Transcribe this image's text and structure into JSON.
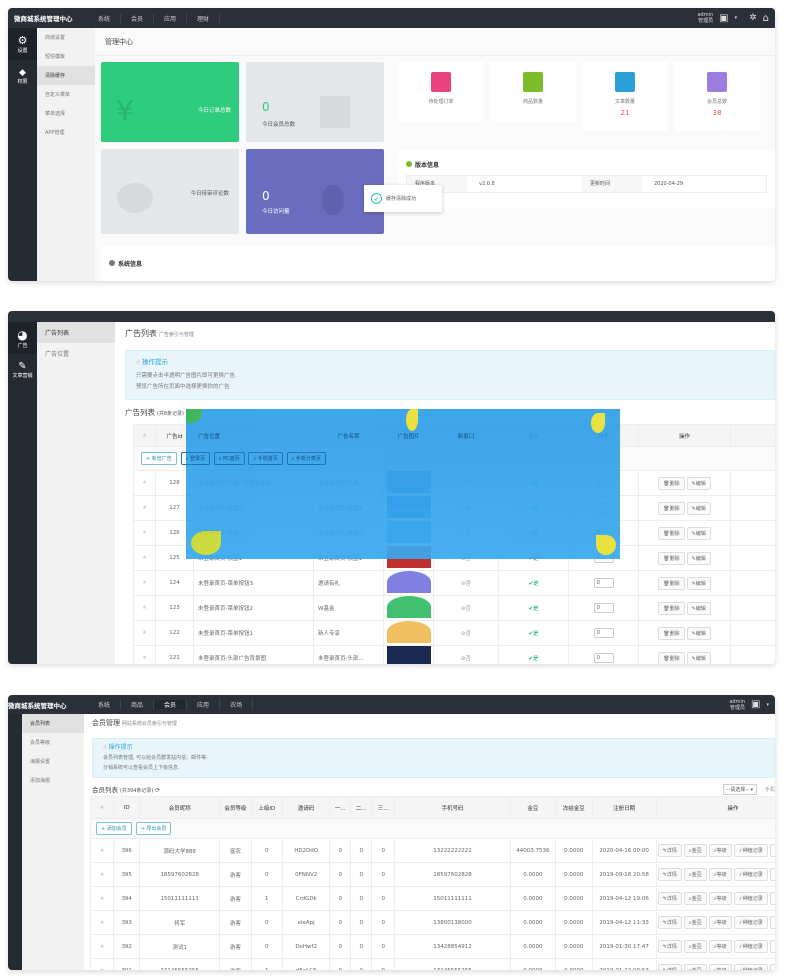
{
  "panel1": {
    "brand": "微商城系统管理中心",
    "nav": [
      "系统",
      "会员",
      "应用",
      "理财"
    ],
    "user": {
      "name": "admin",
      "role": "管理员"
    },
    "iconcol": [
      {
        "label": "设置",
        "icon": "gear-icon"
      },
      {
        "label": "权限",
        "icon": "diamond-icon"
      }
    ],
    "submenu": [
      "商城设置",
      "短信模板",
      "清除缓存",
      "自定义菜单",
      "菜单选择",
      "APP管理"
    ],
    "active_sub": 2,
    "page_title": "管理中心",
    "cards": {
      "orders_label": "今日订单总数",
      "members_value": "0",
      "members_label": "今日会员总数",
      "comments_label": "今日待审评论数",
      "visits_value": "0",
      "visits_label": "今日访问量"
    },
    "stats": [
      {
        "label": "待处理订单",
        "value": "",
        "color": "#e8437f"
      },
      {
        "label": "商品数量",
        "value": "",
        "color": "#7cbb2a"
      },
      {
        "label": "文章数量",
        "value": "21",
        "color": "#2b9fd8"
      },
      {
        "label": "会员总数",
        "value": "38",
        "color": "#9b7ee0"
      }
    ],
    "version": {
      "title": "版本信息",
      "row": [
        "程序版本",
        "v2.0.8",
        "更新时间",
        "2020-04-29"
      ]
    },
    "toast": "缓存清除成功",
    "sysinfo": "系统信息"
  },
  "panel2": {
    "iconcol": [
      {
        "label": "广告",
        "icon": "pie-chart-icon"
      },
      {
        "label": "文章营销",
        "icon": "tag-icon"
      }
    ],
    "submenu": [
      "广告列表",
      "广告位置"
    ],
    "page_title": "广告列表",
    "page_sub": "广告索引与管理",
    "tip_title": "操作提示",
    "tips": [
      "只需要点击半透明广告图片即可更换广告.",
      "预览广告所在页面中选择更换你的广告"
    ],
    "list_title": "广告列表",
    "list_count": "(共8条记录)",
    "headers": [
      "广告id",
      "广告位置",
      "广告名称",
      "广告图片",
      "新窗口",
      "显示",
      "排序",
      "操作"
    ],
    "add_btn": "新增广告",
    "filters": [
      "登录页",
      "PC首页",
      "手机首页",
      "手机分类页"
    ],
    "rows": [
      {
        "id": "128",
        "pos": "未登录首页-头部广告登录图标",
        "name": "未登录首页-头部...",
        "img": "#5a8fc0"
      },
      {
        "id": "127",
        "pos": "未登录首页-横图3",
        "name": "未登录首页-横图3",
        "img": "#3a7bd0"
      },
      {
        "id": "126",
        "pos": "未登录首页-横图2",
        "name": "未登录首页-横图2",
        "img": "#5aa0d8"
      },
      {
        "id": "125",
        "pos": "未登录首页-横图1",
        "name": "未登录首页-横图1",
        "img": "#c03030"
      },
      {
        "id": "124",
        "pos": "未登录首页-菜单按钮3",
        "name": "邀请有礼",
        "img": "#8080e0"
      },
      {
        "id": "123",
        "pos": "未登录首页-菜单按钮2",
        "name": "W基金",
        "img": "#40c070"
      },
      {
        "id": "122",
        "pos": "未登录首页-菜单按钮1",
        "name": "新人专享",
        "img": "#f0c060"
      },
      {
        "id": "121",
        "pos": "未登录首页-头部广告背景图",
        "name": "未登录首页-头部...",
        "img": "#1a2a50"
      }
    ],
    "no": "否",
    "yes": "是",
    "sort": "0",
    "del": "删除",
    "edit": "编辑"
  },
  "panel3": {
    "brand": "微商城系统管理中心",
    "nav": [
      "系统",
      "商品",
      "会员",
      "应用",
      "农场"
    ],
    "active_nav": 2,
    "user": {
      "name": "admin",
      "role": "管理员"
    },
    "submenu": [
      "会员列表",
      "会员等级",
      "海报设置",
      "添加海报"
    ],
    "page_title": "会员管理",
    "page_sub": "网站系统会员索引与管理",
    "tip_title": "操作提示",
    "tips": [
      "会员列表管理, 可以给会员群发站内信、邮件等.",
      "分销系统可以查看会员上下级信息."
    ],
    "list_title": "会员列表",
    "list_count": "(共394条记录)",
    "select": "--请选择--",
    "search_placeholder": "手机",
    "headers": [
      "ID",
      "会员昵称",
      "会员等级",
      "上级ID",
      "邀请码",
      "一...",
      "二...",
      "三...",
      "手机号码",
      "金豆",
      "冻结金豆",
      "注册日期",
      "操作"
    ],
    "add_btn": "添加会员",
    "export_btn": "导出会员",
    "rows": [
      [
        "396",
        "源码大学888",
        "富农",
        "0",
        "HD2DdQ",
        "0",
        "0",
        "0",
        "13222222222",
        "44003.7536",
        "0.0000",
        "2020-04-16 00:00"
      ],
      [
        "395",
        "18597602828",
        "游客",
        "0",
        "0FNNV2",
        "0",
        "0",
        "0",
        "18597602828",
        "0.0000",
        "0.0000",
        "2019-09-18 20:58"
      ],
      [
        "394",
        "15011111111",
        "游客",
        "1",
        "CrdGDk",
        "0",
        "0",
        "0",
        "15011111111",
        "0.0000",
        "0.0000",
        "2019-04-12 19:06"
      ],
      [
        "393",
        "将军",
        "游客",
        "0",
        "eleApj",
        "0",
        "0",
        "0",
        "13800138000",
        "0.0000",
        "0.0000",
        "2019-04-12 11:33"
      ],
      [
        "392",
        "测试1",
        "游客",
        "0",
        "DoHwf2",
        "0",
        "0",
        "0",
        "13428854912",
        "0.0000",
        "0.0000",
        "2019-01-30 17:47"
      ],
      [
        "391",
        "13145555255",
        "游客",
        "1",
        "d6aLC6",
        "0",
        "0",
        "0",
        "13145555255",
        "0.0000",
        "0.0000",
        "2019-01-22 09:53"
      ],
      [
        "390",
        "13192325255",
        "游客",
        "1",
        "pYDYcl",
        "0",
        "0",
        "0",
        "13192325255",
        "0.0000",
        "0.0000",
        "2019-01-22 09:49"
      ]
    ],
    "ops": [
      "详情",
      "金豆",
      "等级",
      "种植记录",
      "删除"
    ]
  }
}
